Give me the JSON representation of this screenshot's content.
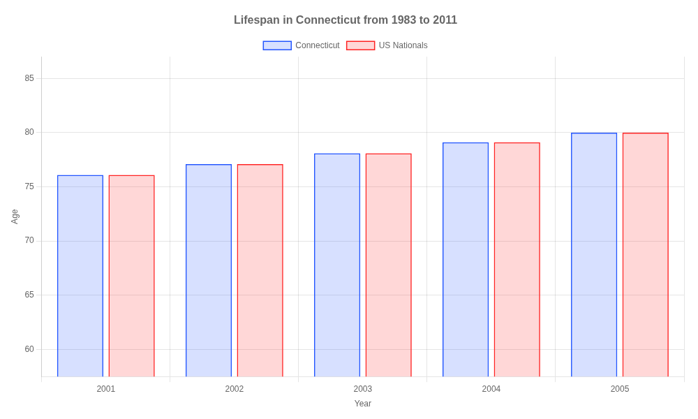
{
  "chart_data": {
    "type": "bar",
    "title": "Lifespan in Connecticut from 1983 to 2011",
    "x_label": "Year",
    "y_label": "Age",
    "categories": [
      "2001",
      "2002",
      "2003",
      "2004",
      "2005"
    ],
    "series": [
      {
        "name": "Connecticut",
        "color": "#2255ff",
        "values": [
          76.1,
          77.1,
          78.1,
          79.1,
          80.0
        ]
      },
      {
        "name": "US Nationals",
        "color": "#ff2222",
        "values": [
          76.1,
          77.1,
          78.1,
          79.1,
          80.0
        ]
      }
    ],
    "ylim": [
      57.5,
      87
    ],
    "yticks": [
      60,
      65,
      70,
      75,
      80,
      85
    ],
    "grid": true,
    "legend": "top"
  }
}
